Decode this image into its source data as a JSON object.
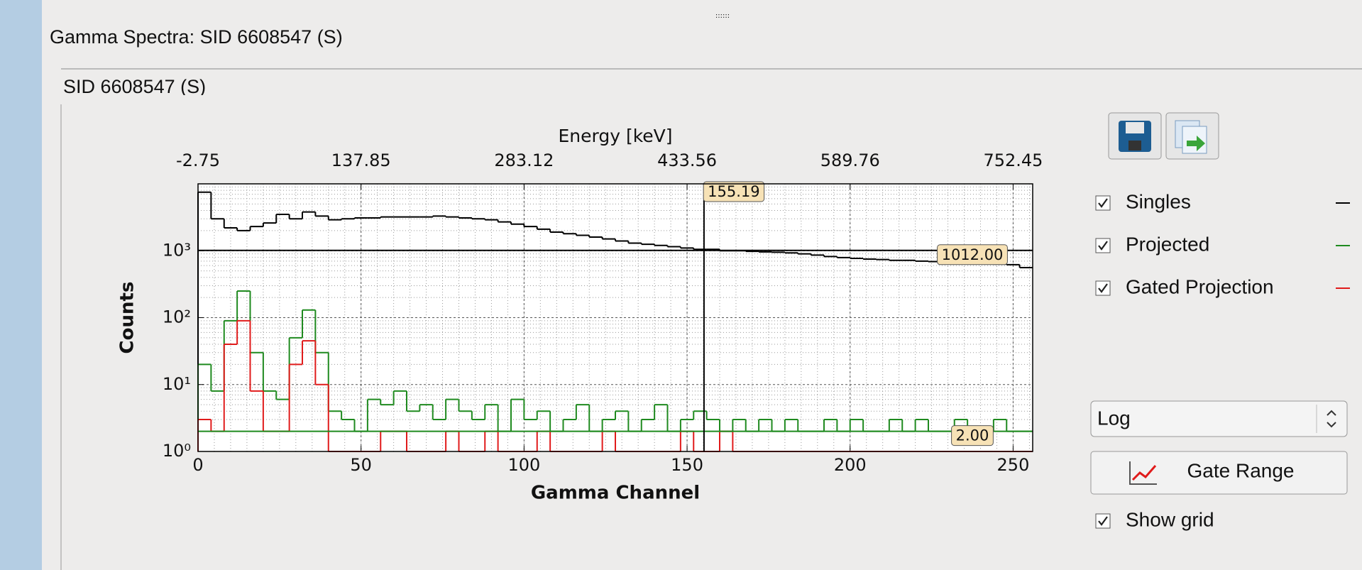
{
  "window": {
    "title": "Gamma Spectra: SID 6608547 (S)",
    "group": "SID 6608547 (S)"
  },
  "controls": {
    "scale": "Log",
    "button": "Gate Range",
    "show_grid": {
      "label": "Show grid",
      "checked": true
    }
  },
  "chart_data": {
    "type": "step",
    "x2label": "Energy [keV]",
    "xlabel": "Gamma Channel",
    "ylabel": "Counts",
    "xlim": [
      0,
      256
    ],
    "ylim": [
      1,
      10000
    ],
    "log_y": true,
    "grid": true,
    "xticks": [
      0,
      50,
      100,
      150,
      200,
      250
    ],
    "x2ticks": [
      {
        "value": 0,
        "label": "-2.75"
      },
      {
        "value": 50,
        "label": "137.85"
      },
      {
        "value": 100,
        "label": "283.12"
      },
      {
        "value": 150,
        "label": "433.56"
      },
      {
        "value": 200,
        "label": "589.76"
      },
      {
        "value": 250,
        "label": "752.45"
      }
    ],
    "yticks": [
      {
        "value": 1,
        "label": "10⁰"
      },
      {
        "value": 10,
        "label": "10¹"
      },
      {
        "value": 100,
        "label": "10²"
      },
      {
        "value": 1000,
        "label": "10³"
      }
    ],
    "x": [
      0,
      4,
      8,
      12,
      16,
      20,
      24,
      28,
      32,
      36,
      40,
      44,
      48,
      52,
      56,
      60,
      64,
      68,
      72,
      76,
      80,
      84,
      88,
      92,
      96,
      100,
      104,
      108,
      112,
      116,
      120,
      124,
      128,
      132,
      136,
      140,
      144,
      148,
      152,
      156,
      160,
      164,
      168,
      172,
      176,
      180,
      184,
      188,
      192,
      196,
      200,
      204,
      208,
      212,
      216,
      220,
      224,
      228,
      232,
      236,
      240,
      244,
      248,
      252
    ],
    "series": [
      {
        "name": "Singles",
        "color": "#000000",
        "visible": true,
        "values": [
          7500,
          3000,
          2200,
          2000,
          2300,
          2600,
          3500,
          3000,
          3800,
          3300,
          2900,
          3000,
          3100,
          3100,
          3200,
          3200,
          3200,
          3200,
          3300,
          3200,
          3100,
          3000,
          2900,
          2700,
          2500,
          2300,
          2100,
          1900,
          1800,
          1700,
          1600,
          1500,
          1400,
          1300,
          1250,
          1200,
          1150,
          1100,
          1050,
          1050,
          1000,
          1000,
          980,
          960,
          950,
          930,
          900,
          860,
          820,
          790,
          770,
          750,
          740,
          720,
          720,
          700,
          690,
          680,
          670,
          650,
          640,
          630,
          620,
          560
        ]
      },
      {
        "name": "Projected",
        "color": "#1f8a1f",
        "visible": true,
        "values": [
          20,
          8,
          90,
          250,
          30,
          8,
          6,
          50,
          130,
          30,
          4,
          3,
          2,
          6,
          5,
          8,
          4,
          5,
          3,
          6,
          4,
          3,
          5,
          2,
          6,
          3,
          4,
          2,
          3,
          5,
          2,
          3,
          4,
          2,
          3,
          5,
          2,
          3,
          4,
          3,
          2,
          3,
          2,
          3,
          2,
          3,
          2,
          2,
          3,
          2,
          3,
          2,
          2,
          3,
          2,
          3,
          2,
          2,
          3,
          2,
          2,
          3,
          2,
          2
        ]
      },
      {
        "name": "Gated Projection",
        "color": "#e01b1b",
        "visible": true,
        "values": [
          3,
          2,
          40,
          90,
          8,
          2,
          2,
          20,
          45,
          10,
          1,
          1,
          1,
          1,
          2,
          2,
          1,
          1,
          1,
          2,
          1,
          1,
          2,
          1,
          1,
          1,
          2,
          1,
          1,
          1,
          1,
          2,
          1,
          1,
          1,
          1,
          1,
          2,
          1,
          1,
          2,
          1,
          1,
          1,
          1,
          1,
          1,
          1,
          1,
          1,
          1,
          1,
          1,
          1,
          1,
          1,
          1,
          1,
          1,
          1,
          1,
          1,
          1,
          1
        ]
      }
    ],
    "cursor": 155.19,
    "hlines": [
      {
        "value": 1012,
        "label": "1012.00",
        "color": "#000000"
      },
      {
        "value": 2,
        "label": "2.00",
        "color": "#1f8a1f"
      }
    ]
  }
}
